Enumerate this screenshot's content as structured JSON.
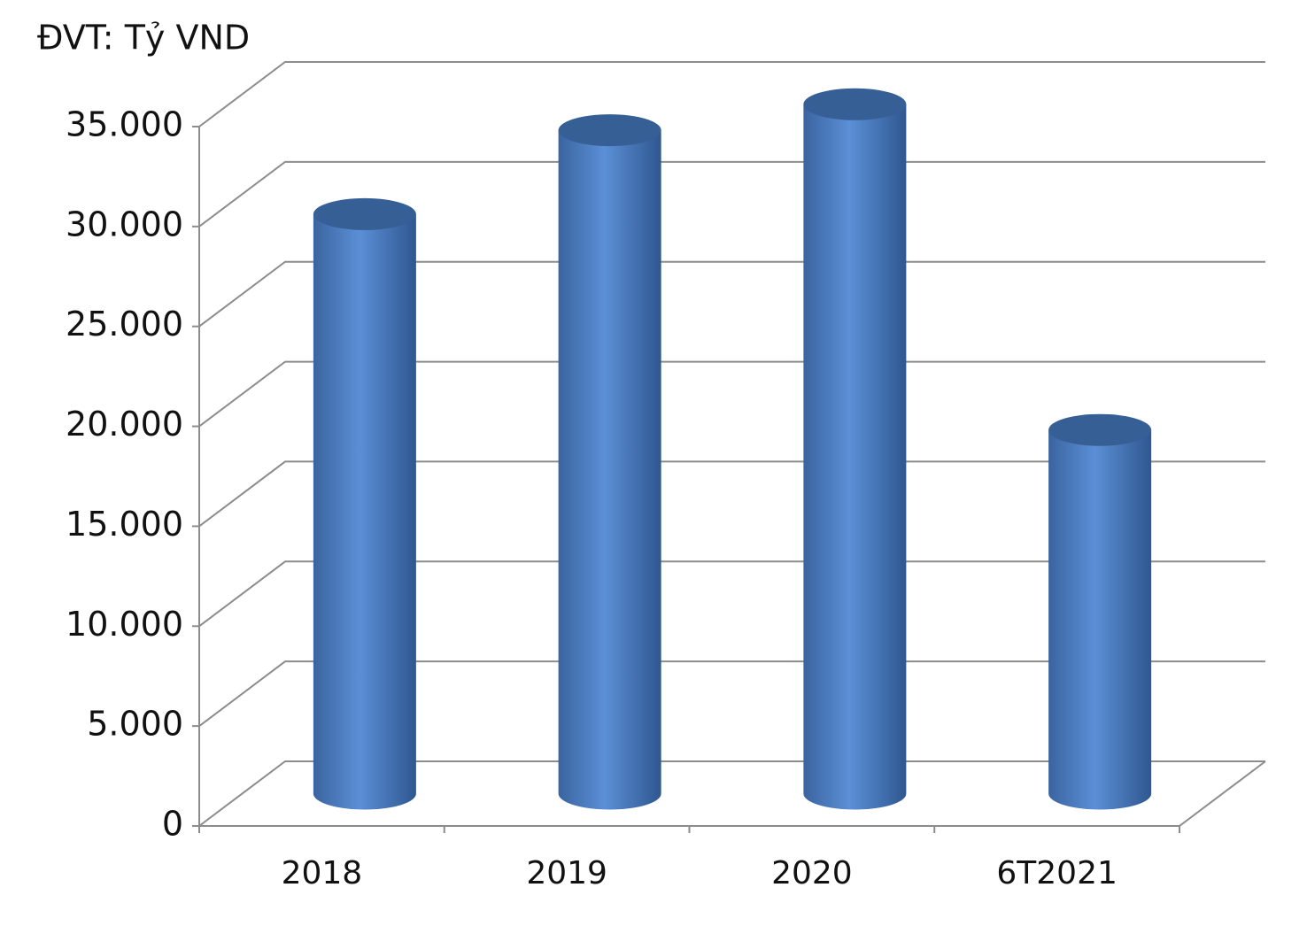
{
  "chart_data": {
    "type": "bar",
    "title": "ĐVT: Tỷ VND",
    "categories": [
      "2018",
      "2019",
      "2020",
      "6T2021"
    ],
    "values": [
      29000,
      33200,
      34500,
      18200
    ],
    "color": "#4f81bd",
    "ylim": [
      0,
      35000
    ],
    "yticks": [
      0,
      {
        "value": 5000,
        "label": "5.000"
      },
      {
        "value": 10000,
        "label": "10.000"
      },
      {
        "value": 15000,
        "label": "15.000"
      },
      {
        "value": 20000,
        "label": "20.000"
      },
      {
        "value": 25000,
        "label": "25.000"
      },
      {
        "value": 30000,
        "label": "30.000"
      },
      {
        "value": 35000,
        "label": "35.000"
      }
    ],
    "grid": true
  }
}
